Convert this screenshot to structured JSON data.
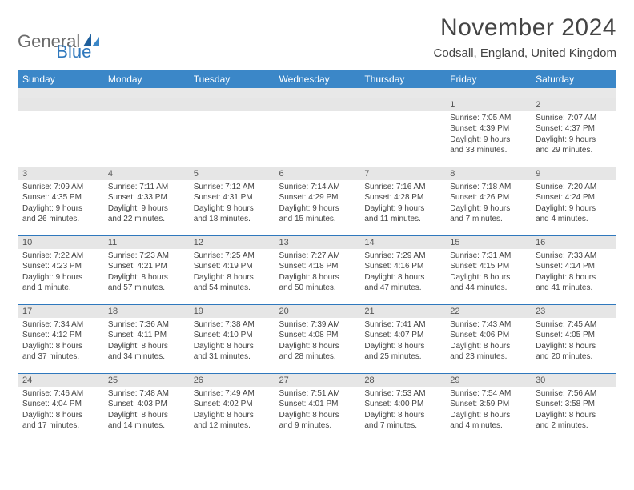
{
  "brand": {
    "word1": "General",
    "word2": "Blue"
  },
  "title": "November 2024",
  "location": "Codsall, England, United Kingdom",
  "colors": {
    "header_bg": "#3b87c8",
    "header_text": "#ffffff",
    "rule": "#2f78bd",
    "daynum_bg": "#e6e6e6",
    "body_text": "#444444",
    "logo_gray": "#6b6b6b",
    "logo_blue": "#2f78bd"
  },
  "day_headers": [
    "Sunday",
    "Monday",
    "Tuesday",
    "Wednesday",
    "Thursday",
    "Friday",
    "Saturday"
  ],
  "weeks": [
    [
      {
        "n": "",
        "lines": []
      },
      {
        "n": "",
        "lines": []
      },
      {
        "n": "",
        "lines": []
      },
      {
        "n": "",
        "lines": []
      },
      {
        "n": "",
        "lines": []
      },
      {
        "n": "1",
        "lines": [
          "Sunrise: 7:05 AM",
          "Sunset: 4:39 PM",
          "Daylight: 9 hours",
          "and 33 minutes."
        ]
      },
      {
        "n": "2",
        "lines": [
          "Sunrise: 7:07 AM",
          "Sunset: 4:37 PM",
          "Daylight: 9 hours",
          "and 29 minutes."
        ]
      }
    ],
    [
      {
        "n": "3",
        "lines": [
          "Sunrise: 7:09 AM",
          "Sunset: 4:35 PM",
          "Daylight: 9 hours",
          "and 26 minutes."
        ]
      },
      {
        "n": "4",
        "lines": [
          "Sunrise: 7:11 AM",
          "Sunset: 4:33 PM",
          "Daylight: 9 hours",
          "and 22 minutes."
        ]
      },
      {
        "n": "5",
        "lines": [
          "Sunrise: 7:12 AM",
          "Sunset: 4:31 PM",
          "Daylight: 9 hours",
          "and 18 minutes."
        ]
      },
      {
        "n": "6",
        "lines": [
          "Sunrise: 7:14 AM",
          "Sunset: 4:29 PM",
          "Daylight: 9 hours",
          "and 15 minutes."
        ]
      },
      {
        "n": "7",
        "lines": [
          "Sunrise: 7:16 AM",
          "Sunset: 4:28 PM",
          "Daylight: 9 hours",
          "and 11 minutes."
        ]
      },
      {
        "n": "8",
        "lines": [
          "Sunrise: 7:18 AM",
          "Sunset: 4:26 PM",
          "Daylight: 9 hours",
          "and 7 minutes."
        ]
      },
      {
        "n": "9",
        "lines": [
          "Sunrise: 7:20 AM",
          "Sunset: 4:24 PM",
          "Daylight: 9 hours",
          "and 4 minutes."
        ]
      }
    ],
    [
      {
        "n": "10",
        "lines": [
          "Sunrise: 7:22 AM",
          "Sunset: 4:23 PM",
          "Daylight: 9 hours",
          "and 1 minute."
        ]
      },
      {
        "n": "11",
        "lines": [
          "Sunrise: 7:23 AM",
          "Sunset: 4:21 PM",
          "Daylight: 8 hours",
          "and 57 minutes."
        ]
      },
      {
        "n": "12",
        "lines": [
          "Sunrise: 7:25 AM",
          "Sunset: 4:19 PM",
          "Daylight: 8 hours",
          "and 54 minutes."
        ]
      },
      {
        "n": "13",
        "lines": [
          "Sunrise: 7:27 AM",
          "Sunset: 4:18 PM",
          "Daylight: 8 hours",
          "and 50 minutes."
        ]
      },
      {
        "n": "14",
        "lines": [
          "Sunrise: 7:29 AM",
          "Sunset: 4:16 PM",
          "Daylight: 8 hours",
          "and 47 minutes."
        ]
      },
      {
        "n": "15",
        "lines": [
          "Sunrise: 7:31 AM",
          "Sunset: 4:15 PM",
          "Daylight: 8 hours",
          "and 44 minutes."
        ]
      },
      {
        "n": "16",
        "lines": [
          "Sunrise: 7:33 AM",
          "Sunset: 4:14 PM",
          "Daylight: 8 hours",
          "and 41 minutes."
        ]
      }
    ],
    [
      {
        "n": "17",
        "lines": [
          "Sunrise: 7:34 AM",
          "Sunset: 4:12 PM",
          "Daylight: 8 hours",
          "and 37 minutes."
        ]
      },
      {
        "n": "18",
        "lines": [
          "Sunrise: 7:36 AM",
          "Sunset: 4:11 PM",
          "Daylight: 8 hours",
          "and 34 minutes."
        ]
      },
      {
        "n": "19",
        "lines": [
          "Sunrise: 7:38 AM",
          "Sunset: 4:10 PM",
          "Daylight: 8 hours",
          "and 31 minutes."
        ]
      },
      {
        "n": "20",
        "lines": [
          "Sunrise: 7:39 AM",
          "Sunset: 4:08 PM",
          "Daylight: 8 hours",
          "and 28 minutes."
        ]
      },
      {
        "n": "21",
        "lines": [
          "Sunrise: 7:41 AM",
          "Sunset: 4:07 PM",
          "Daylight: 8 hours",
          "and 25 minutes."
        ]
      },
      {
        "n": "22",
        "lines": [
          "Sunrise: 7:43 AM",
          "Sunset: 4:06 PM",
          "Daylight: 8 hours",
          "and 23 minutes."
        ]
      },
      {
        "n": "23",
        "lines": [
          "Sunrise: 7:45 AM",
          "Sunset: 4:05 PM",
          "Daylight: 8 hours",
          "and 20 minutes."
        ]
      }
    ],
    [
      {
        "n": "24",
        "lines": [
          "Sunrise: 7:46 AM",
          "Sunset: 4:04 PM",
          "Daylight: 8 hours",
          "and 17 minutes."
        ]
      },
      {
        "n": "25",
        "lines": [
          "Sunrise: 7:48 AM",
          "Sunset: 4:03 PM",
          "Daylight: 8 hours",
          "and 14 minutes."
        ]
      },
      {
        "n": "26",
        "lines": [
          "Sunrise: 7:49 AM",
          "Sunset: 4:02 PM",
          "Daylight: 8 hours",
          "and 12 minutes."
        ]
      },
      {
        "n": "27",
        "lines": [
          "Sunrise: 7:51 AM",
          "Sunset: 4:01 PM",
          "Daylight: 8 hours",
          "and 9 minutes."
        ]
      },
      {
        "n": "28",
        "lines": [
          "Sunrise: 7:53 AM",
          "Sunset: 4:00 PM",
          "Daylight: 8 hours",
          "and 7 minutes."
        ]
      },
      {
        "n": "29",
        "lines": [
          "Sunrise: 7:54 AM",
          "Sunset: 3:59 PM",
          "Daylight: 8 hours",
          "and 4 minutes."
        ]
      },
      {
        "n": "30",
        "lines": [
          "Sunrise: 7:56 AM",
          "Sunset: 3:58 PM",
          "Daylight: 8 hours",
          "and 2 minutes."
        ]
      }
    ]
  ]
}
